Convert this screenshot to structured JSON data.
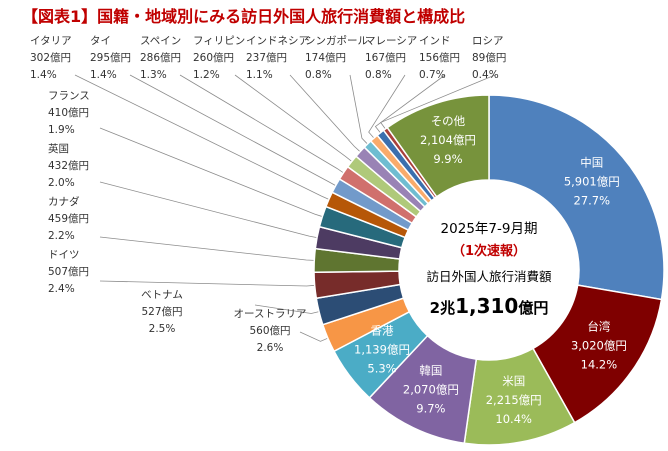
{
  "chart_data": {
    "type": "pie",
    "style": "donut",
    "title": "【図表1】国籍・地域別にみる訪日外国人旅行消費額と構成比",
    "center": {
      "period": "2025年7-9月期",
      "status": "（1次速報）",
      "label": "訪日外国人旅行消費額",
      "total_prefix": "2兆",
      "total_value": "1,310",
      "total_unit": "億円"
    },
    "slices": [
      {
        "name": "中国",
        "amount": "5,901億円",
        "share": "27.7%",
        "value": 5901,
        "color": "#4f81bd"
      },
      {
        "name": "台湾",
        "amount": "3,020億円",
        "share": "14.2%",
        "value": 3020,
        "color": "#7f0000"
      },
      {
        "name": "米国",
        "amount": "2,215億円",
        "share": "10.4%",
        "value": 2215,
        "color": "#9bbb59"
      },
      {
        "name": "韓国",
        "amount": "2,070億円",
        "share": "9.7%",
        "value": 2070,
        "color": "#8064a2"
      },
      {
        "name": "香港",
        "amount": "1,139億円",
        "share": "5.3%",
        "value": 1139,
        "color": "#4bacc6"
      },
      {
        "name": "オーストラリア",
        "amount": "560億円",
        "share": "2.6%",
        "value": 560,
        "color": "#f79646"
      },
      {
        "name": "ベトナム",
        "amount": "527億円",
        "share": "2.5%",
        "value": 527,
        "color": "#2c4d75"
      },
      {
        "name": "ドイツ",
        "amount": "507億円",
        "share": "2.4%",
        "value": 507,
        "color": "#772c2a"
      },
      {
        "name": "カナダ",
        "amount": "459億円",
        "share": "2.2%",
        "value": 459,
        "color": "#5f7530"
      },
      {
        "name": "英国",
        "amount": "432億円",
        "share": "2.0%",
        "value": 432,
        "color": "#4d3b62"
      },
      {
        "name": "フランス",
        "amount": "410億円",
        "share": "1.9%",
        "value": 410,
        "color": "#276a7c"
      },
      {
        "name": "イタリア",
        "amount": "302億円",
        "share": "1.4%",
        "value": 302,
        "color": "#b65708"
      },
      {
        "name": "タイ",
        "amount": "295億円",
        "share": "1.4%",
        "value": 295,
        "color": "#729aca"
      },
      {
        "name": "スペイン",
        "amount": "286億円",
        "share": "1.3%",
        "value": 286,
        "color": "#d0706d"
      },
      {
        "name": "フィリピン",
        "amount": "260億円",
        "share": "1.2%",
        "value": 260,
        "color": "#afc97a"
      },
      {
        "name": "インドネシア",
        "amount": "237億円",
        "share": "1.1%",
        "value": 237,
        "color": "#9983b5"
      },
      {
        "name": "シンガポール",
        "amount": "174億円",
        "share": "0.8%",
        "value": 174,
        "color": "#6fbdd1"
      },
      {
        "name": "マレーシア",
        "amount": "167億円",
        "share": "0.8%",
        "value": 167,
        "color": "#f9ab6b"
      },
      {
        "name": "インド",
        "amount": "156億円",
        "share": "0.7%",
        "value": 156,
        "color": "#3b6fae"
      },
      {
        "name": "ロシア",
        "amount": "89億円",
        "share": "0.4%",
        "value": 89,
        "color": "#a9403c"
      },
      {
        "name": "その他",
        "amount": "2,104億円",
        "share": "9.9%",
        "value": 2104,
        "color": "#77933c"
      }
    ]
  }
}
